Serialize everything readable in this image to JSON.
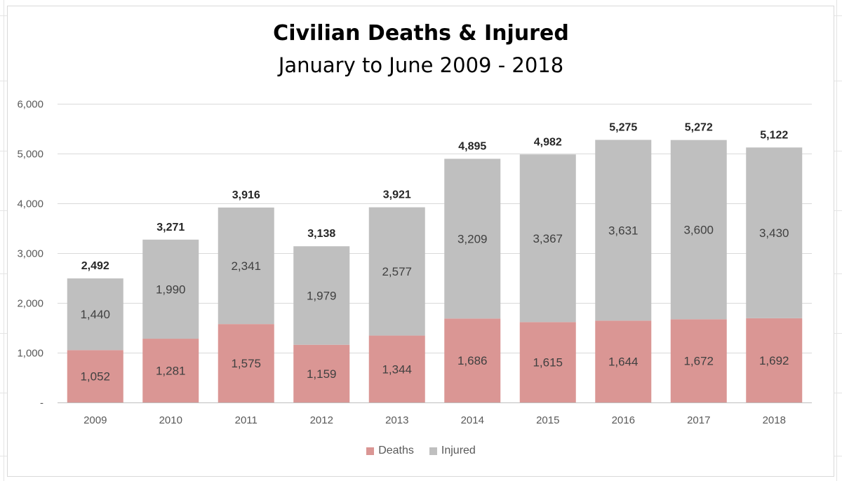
{
  "chart_data": {
    "type": "bar",
    "stacked": true,
    "title": "Civilian Deaths & Injured",
    "subtitle": "January to June 2009 - 2018",
    "categories": [
      "2009",
      "2010",
      "2011",
      "2012",
      "2013",
      "2014",
      "2015",
      "2016",
      "2017",
      "2018"
    ],
    "series": [
      {
        "name": "Deaths",
        "color": "#da9694",
        "values": [
          1052,
          1281,
          1575,
          1159,
          1344,
          1686,
          1615,
          1644,
          1672,
          1692
        ],
        "labels": [
          "1,052",
          "1,281",
          "1,575",
          "1,159",
          "1,344",
          "1,686",
          "1,615",
          "1,644",
          "1,672",
          "1,692"
        ]
      },
      {
        "name": "Injured",
        "color": "#bfbfbf",
        "values": [
          1440,
          1990,
          2341,
          1979,
          2577,
          3209,
          3367,
          3631,
          3600,
          3430
        ],
        "labels": [
          "1,440",
          "1,990",
          "2,341",
          "1,979",
          "2,577",
          "3,209",
          "3,367",
          "3,631",
          "3,600",
          "3,430"
        ]
      }
    ],
    "totals": [
      2492,
      3271,
      3916,
      3138,
      3921,
      4895,
      4982,
      5275,
      5272,
      5122
    ],
    "total_labels": [
      "2,492",
      "3,271",
      "3,916",
      "3,138",
      "3,921",
      "4,895",
      "4,982",
      "5,275",
      "5,272",
      "5,122"
    ],
    "ylim": [
      0,
      6000
    ],
    "yticks": [
      0,
      1000,
      2000,
      3000,
      4000,
      5000,
      6000
    ],
    "ytick_labels": [
      "-",
      "1,000",
      "2,000",
      "3,000",
      "4,000",
      "5,000",
      "6,000"
    ],
    "grid": true,
    "legend_position": "bottom",
    "xlabel": "",
    "ylabel": ""
  }
}
